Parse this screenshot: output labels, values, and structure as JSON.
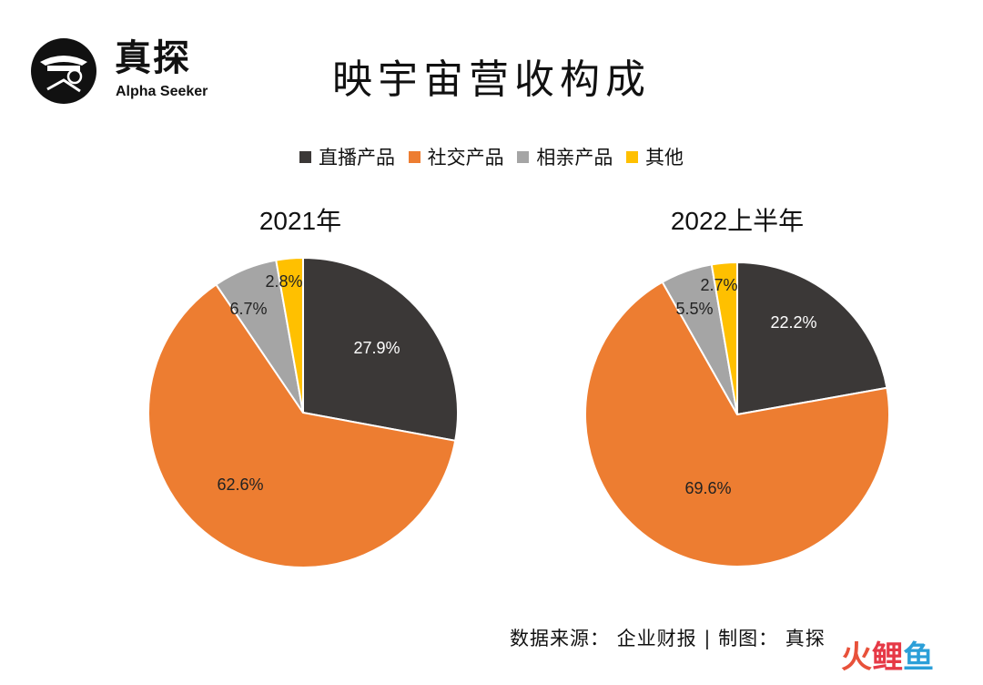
{
  "logo": {
    "cn": "真探",
    "en": "Alpha Seeker"
  },
  "title": "映宇宙营收构成",
  "legend": [
    {
      "label": "直播产品",
      "color": "#3b3837"
    },
    {
      "label": "社交产品",
      "color": "#ed7d31"
    },
    {
      "label": "相亲产品",
      "color": "#a5a5a5"
    },
    {
      "label": "其他",
      "color": "#ffc000"
    }
  ],
  "chart_data": [
    {
      "type": "pie",
      "title": "2021年",
      "categories": [
        "直播产品",
        "社交产品",
        "相亲产品",
        "其他"
      ],
      "values": [
        27.9,
        62.6,
        6.7,
        2.8
      ],
      "labels": [
        "27.9%",
        "62.6%",
        "6.7%",
        "2.8%"
      ],
      "colors": [
        "#3b3837",
        "#ed7d31",
        "#a5a5a5",
        "#ffc000"
      ]
    },
    {
      "type": "pie",
      "title": "2022上半年",
      "categories": [
        "直播产品",
        "社交产品",
        "相亲产品",
        "其他"
      ],
      "values": [
        22.2,
        69.6,
        5.5,
        2.7
      ],
      "labels": [
        "22.2%",
        "69.6%",
        "5.5%",
        "2.7%"
      ],
      "colors": [
        "#3b3837",
        "#ed7d31",
        "#a5a5a5",
        "#ffc000"
      ]
    }
  ],
  "source": "数据来源： 企业财报 | 制图： 真探",
  "watermark": {
    "a": "火",
    "b": "鲤",
    "c": "鱼"
  }
}
